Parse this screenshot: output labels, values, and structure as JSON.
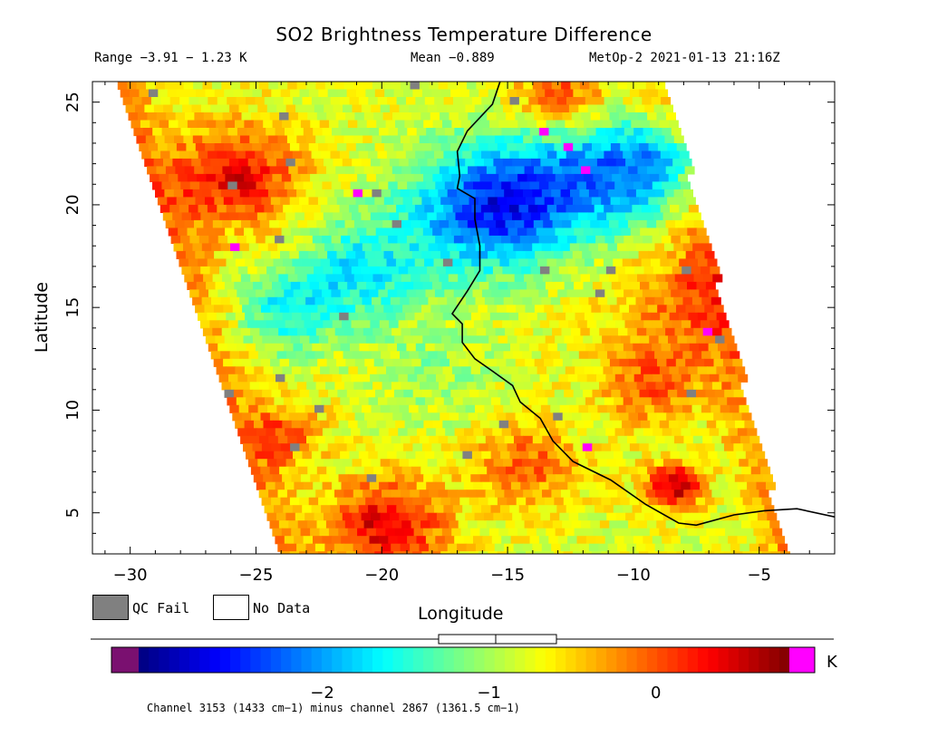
{
  "header": {
    "title": "SO2 Brightness Temperature Difference",
    "range": "Range −3.91 − 1.23 K",
    "mean": "Mean −0.889",
    "satellite": "MetOp-2 2021-01-13 21:16Z"
  },
  "legend": {
    "qc_fail": "QC Fail",
    "no_data": "No Data",
    "qc_color": "#808080",
    "no_data_color": "#ffffff"
  },
  "chart_data": {
    "type": "heatmap",
    "title": "SO2 Brightness Temperature Difference",
    "xlabel": "Longitude",
    "ylabel": "Latitude",
    "xlim": [
      -31.5,
      -2
    ],
    "ylim": [
      3,
      26
    ],
    "xticks": [
      -30,
      -25,
      -20,
      -15,
      -10,
      -5
    ],
    "xtick_labels": [
      "−30",
      "−25",
      "−20",
      "−15",
      "−10",
      "−5"
    ],
    "yticks": [
      5,
      10,
      15,
      20,
      25
    ],
    "ytick_labels": [
      "5",
      "10",
      "15",
      "20",
      "25"
    ],
    "value_range": [
      -3.91,
      1.23
    ],
    "mean": -0.889,
    "units": "K",
    "swath": {
      "top_left": [
        -30.5,
        26
      ],
      "top_right": [
        -8.8,
        26
      ],
      "bottom_left": [
        -24,
        3
      ],
      "bottom_right": [
        -4,
        3
      ]
    },
    "coastline": [
      [
        -15.3,
        26
      ],
      [
        -15.6,
        24.9
      ],
      [
        -16.6,
        23.6
      ],
      [
        -17.0,
        22.6
      ],
      [
        -16.9,
        21.4
      ],
      [
        -17.0,
        20.8
      ],
      [
        -16.3,
        20.3
      ],
      [
        -16.3,
        19.3
      ],
      [
        -16.1,
        18.0
      ],
      [
        -16.1,
        16.8
      ],
      [
        -16.6,
        15.8
      ],
      [
        -17.2,
        14.7
      ],
      [
        -16.8,
        14.2
      ],
      [
        -16.8,
        13.3
      ],
      [
        -16.3,
        12.5
      ],
      [
        -15.6,
        11.9
      ],
      [
        -14.8,
        11.2
      ],
      [
        -14.5,
        10.4
      ],
      [
        -13.7,
        9.6
      ],
      [
        -13.2,
        8.5
      ],
      [
        -12.4,
        7.5
      ],
      [
        -10.9,
        6.6
      ],
      [
        -9.5,
        5.4
      ],
      [
        -8.2,
        4.5
      ],
      [
        -7.5,
        4.4
      ],
      [
        -6.0,
        4.9
      ],
      [
        -4.8,
        5.1
      ],
      [
        -3.5,
        5.2
      ],
      [
        -2,
        4.8
      ]
    ],
    "colorbar": {
      "ticks": [
        -2,
        -1,
        0
      ],
      "tick_labels": [
        "−2",
        "−1",
        "0"
      ],
      "unit": "K",
      "low_color": "#7a1070",
      "high_color": "#ff00ff",
      "colors": [
        "#00007f",
        "#0000ff",
        "#007fff",
        "#00ffff",
        "#7fff7f",
        "#ffff00",
        "#ff7f00",
        "#ff0000",
        "#7f0000"
      ]
    },
    "footnote": "Channel 3153 (1433 cm−1) minus channel 2867 (1361.5 cm−1)"
  }
}
